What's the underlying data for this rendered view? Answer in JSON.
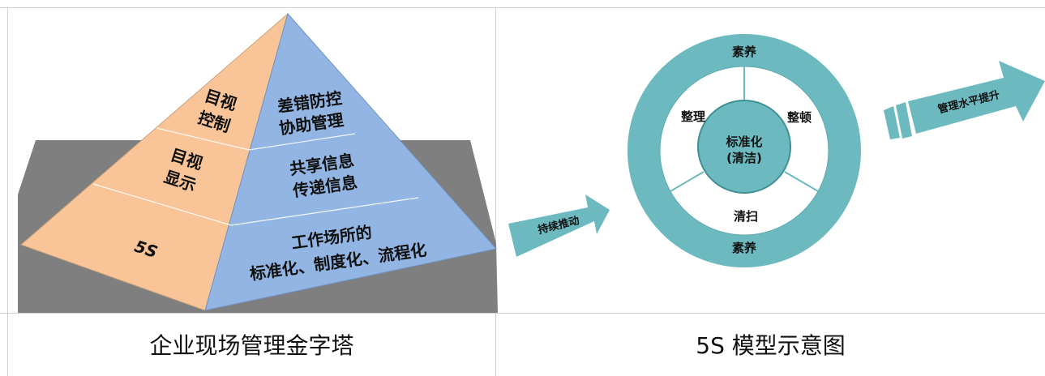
{
  "pyramid": {
    "left_faces": [
      "目视",
      "控制",
      "目视",
      "显示",
      "5S"
    ],
    "right_faces": [
      "差错防控",
      "协助管理",
      "共享信息",
      "传递信息",
      "工作场所的",
      "标准化、制度化、流程化"
    ]
  },
  "model": {
    "push_arrow_label": "持续推动",
    "ring_top": "素养",
    "ring_bottom": "素养",
    "inner_left": "整理",
    "inner_right": "整顿",
    "inner_bottom": "清扫",
    "center_line1": "标准化",
    "center_line2": "(清洁)",
    "up_arrow_label": "管理水平提升"
  },
  "captions": {
    "left": "企业现场管理金字塔",
    "right": "5S 模型示意图"
  },
  "colors": {
    "peach": "#f9c598",
    "blue": "#92b5e3",
    "gray": "#7f7f7f",
    "teal": "#6cbac0",
    "teal_dark": "#3f8f95"
  }
}
